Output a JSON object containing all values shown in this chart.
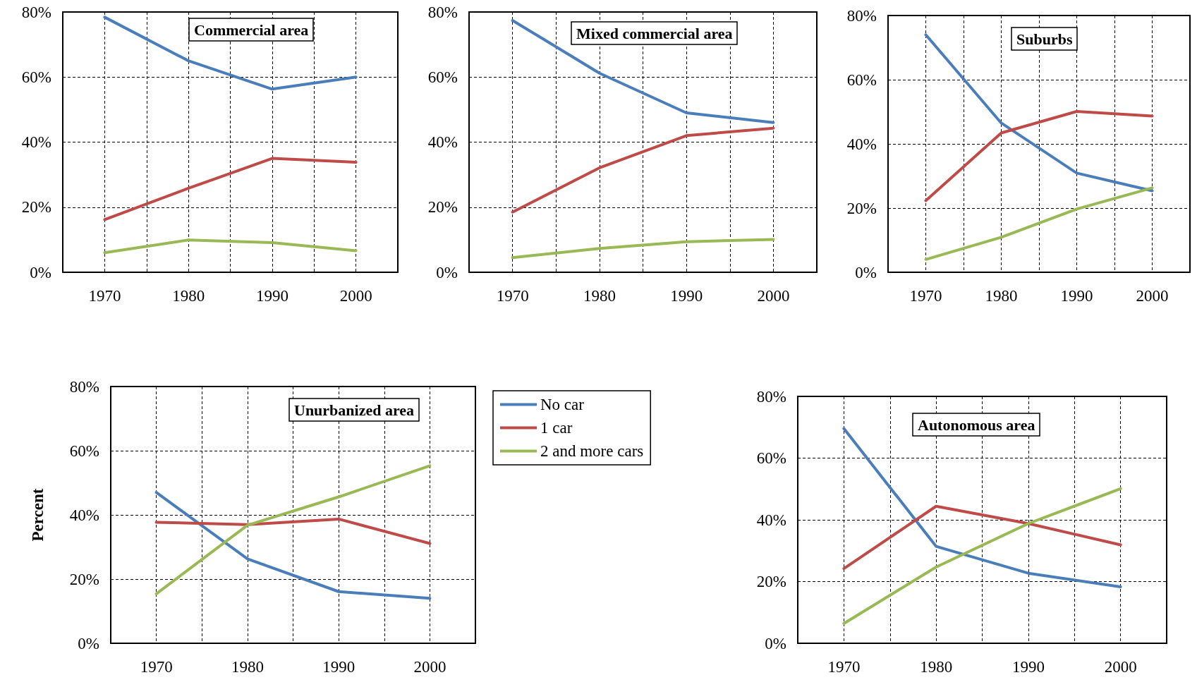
{
  "chart_data": [
    {
      "type": "line",
      "title": "Commercial area",
      "x": [
        1970,
        1980,
        1990,
        2000
      ],
      "xlim": [
        1965,
        2005
      ],
      "xticks": [
        1970,
        {
          "value": 1975,
          "label": null
        },
        1980,
        {
          "value": 1985,
          "label": null
        },
        1990,
        {
          "value": 1995,
          "label": null
        },
        2000
      ],
      "ylim": [
        0,
        80
      ],
      "yticks": [
        {
          "value": 0,
          "label": "0%"
        },
        {
          "value": 20,
          "label": "20%"
        },
        {
          "value": 40,
          "label": "40%"
        },
        {
          "value": 60,
          "label": "60%"
        },
        {
          "value": 80,
          "label": "80%"
        }
      ],
      "grid": true,
      "legend": false,
      "series": [
        {
          "color": "#4a7ebb",
          "values": [
            78.4,
            65,
            56.3,
            60
          ]
        },
        {
          "color": "#be4b48",
          "values": [
            16.2,
            25.8,
            35,
            33.8
          ]
        },
        {
          "color": "#98b954",
          "values": [
            6,
            9.9,
            9.1,
            6.6
          ]
        }
      ]
    },
    {
      "type": "line",
      "title": "Mixed commercial area",
      "x": [
        1970,
        1980,
        1990,
        2000
      ],
      "xlim": [
        1965,
        2005
      ],
      "xticks": [
        1970,
        {
          "value": 1975,
          "label": null
        },
        1980,
        {
          "value": 1985,
          "label": null
        },
        1990,
        {
          "value": 1995,
          "label": null
        },
        2000
      ],
      "ylim": [
        0,
        80
      ],
      "yticks": [
        {
          "value": 0,
          "label": "0%"
        },
        {
          "value": 20,
          "label": "20%"
        },
        {
          "value": 40,
          "label": "40%"
        },
        {
          "value": 60,
          "label": "60%"
        },
        {
          "value": 80,
          "label": "80%"
        }
      ],
      "grid": true,
      "legend": false,
      "series": [
        {
          "color": "#4a7ebb",
          "values": [
            77.4,
            61.2,
            49,
            46
          ]
        },
        {
          "color": "#be4b48",
          "values": [
            18.5,
            32.1,
            42,
            44.3
          ]
        },
        {
          "color": "#98b954",
          "values": [
            4.5,
            7.3,
            9.4,
            10.1
          ]
        }
      ]
    },
    {
      "type": "line",
      "title": "Suburbs",
      "x": [
        1970,
        1980,
        1990,
        2000
      ],
      "xlim": [
        1965,
        2005
      ],
      "xticks": [
        1970,
        {
          "value": 1975,
          "label": null
        },
        1980,
        {
          "value": 1985,
          "label": null
        },
        1990,
        {
          "value": 1995,
          "label": null
        },
        2000
      ],
      "ylim": [
        0,
        80
      ],
      "yticks": [
        {
          "value": 0,
          "label": "0%"
        },
        {
          "value": 20,
          "label": "20%"
        },
        {
          "value": 40,
          "label": "40%"
        },
        {
          "value": 60,
          "label": "60%"
        },
        {
          "value": 80,
          "label": "80%"
        }
      ],
      "grid": true,
      "legend": false,
      "series": [
        {
          "color": "#4a7ebb",
          "values": [
            74,
            46.5,
            30.9,
            25.4
          ]
        },
        {
          "color": "#be4b48",
          "values": [
            22.3,
            43.4,
            50.1,
            48.7
          ]
        },
        {
          "color": "#98b954",
          "values": [
            4,
            10.9,
            19.7,
            26.3
          ]
        }
      ]
    },
    {
      "type": "line",
      "title": "Unurbanized area",
      "ylabel": "Percent",
      "x": [
        1970,
        1980,
        1990,
        2000
      ],
      "xlim": [
        1965,
        2005
      ],
      "xticks": [
        1970,
        {
          "value": 1975,
          "label": null
        },
        1980,
        {
          "value": 1985,
          "label": null
        },
        1990,
        {
          "value": 1995,
          "label": null
        },
        2000
      ],
      "ylim": [
        0,
        80
      ],
      "yticks": [
        {
          "value": 0,
          "label": "0%"
        },
        {
          "value": 20,
          "label": "20%"
        },
        {
          "value": 40,
          "label": "40%"
        },
        {
          "value": 60,
          "label": "60%"
        },
        {
          "value": 80,
          "label": "80%"
        }
      ],
      "grid": true,
      "legend": "right",
      "series": [
        {
          "name": "No car",
          "color": "#4a7ebb",
          "values": [
            47,
            26.3,
            16.1,
            14
          ]
        },
        {
          "name": "1 car",
          "color": "#be4b48",
          "values": [
            37.7,
            37,
            38.7,
            31.1
          ]
        },
        {
          "name": "2 and more cars",
          "color": "#98b954",
          "values": [
            15.4,
            36.8,
            45.6,
            55.3
          ]
        }
      ]
    },
    {
      "type": "line",
      "title": "Autonomous area",
      "x": [
        1970,
        1980,
        1990,
        2000
      ],
      "xlim": [
        1965,
        2005
      ],
      "xticks": [
        1970,
        {
          "value": 1975,
          "label": null
        },
        1980,
        {
          "value": 1985,
          "label": null
        },
        1990,
        {
          "value": 1995,
          "label": null
        },
        2000
      ],
      "ylim": [
        0,
        80
      ],
      "yticks": [
        {
          "value": 0,
          "label": "0%"
        },
        {
          "value": 20,
          "label": "20%"
        },
        {
          "value": 40,
          "label": "40%"
        },
        {
          "value": 60,
          "label": "60%"
        },
        {
          "value": 80,
          "label": "80%"
        }
      ],
      "grid": true,
      "legend": false,
      "series": [
        {
          "color": "#4a7ebb",
          "values": [
            69.6,
            31.4,
            22.7,
            18.3
          ]
        },
        {
          "color": "#be4b48",
          "values": [
            24.2,
            44.4,
            38.8,
            31.9
          ]
        },
        {
          "color": "#98b954",
          "values": [
            6.4,
            24.7,
            38.8,
            50.1
          ]
        }
      ]
    }
  ]
}
